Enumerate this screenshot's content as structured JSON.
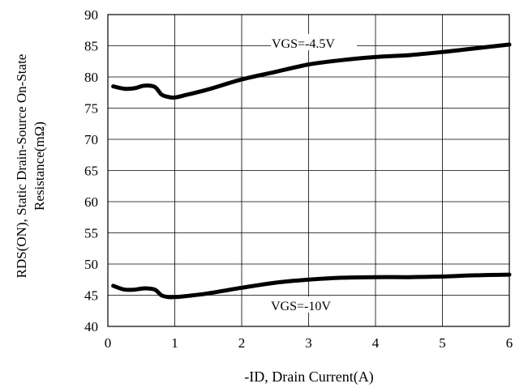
{
  "chart_data": {
    "type": "line",
    "title": "",
    "xlabel": "-ID, Drain Current(A)",
    "ylabel_lines": [
      "RDS(ON), Static Drain-Source On-State",
      "Resistance(mΩ)"
    ],
    "xlim": [
      0,
      6
    ],
    "ylim": [
      40,
      90
    ],
    "x_ticks": [
      0,
      1,
      2,
      3,
      4,
      5,
      6
    ],
    "y_ticks": [
      40,
      45,
      50,
      55,
      60,
      65,
      70,
      75,
      80,
      85,
      90
    ],
    "grid": true,
    "line_color": "#000000",
    "series": [
      {
        "name": "VGS=-4.5V",
        "x": [
          0.08,
          0.25,
          0.4,
          0.55,
          0.7,
          0.8,
          0.9,
          1.0,
          1.2,
          1.5,
          2.0,
          2.5,
          3.0,
          3.5,
          4.0,
          4.5,
          5.0,
          5.5,
          6.0
        ],
        "y": [
          78.5,
          78.1,
          78.2,
          78.6,
          78.4,
          77.2,
          76.8,
          76.7,
          77.2,
          78.0,
          79.6,
          80.8,
          82.0,
          82.7,
          83.2,
          83.5,
          84.0,
          84.6,
          85.2
        ]
      },
      {
        "name": "VGS=-10V",
        "x": [
          0.08,
          0.25,
          0.4,
          0.55,
          0.7,
          0.8,
          0.9,
          1.0,
          1.2,
          1.5,
          2.0,
          2.5,
          3.0,
          3.5,
          4.0,
          4.5,
          5.0,
          5.5,
          6.0
        ],
        "y": [
          46.5,
          45.9,
          45.9,
          46.1,
          45.9,
          45.0,
          44.7,
          44.7,
          44.9,
          45.3,
          46.2,
          47.0,
          47.5,
          47.8,
          47.9,
          47.9,
          48.0,
          48.2,
          48.3
        ]
      }
    ],
    "annotations": [
      "VGS=-4.5V",
      "VGS=-10V"
    ]
  }
}
